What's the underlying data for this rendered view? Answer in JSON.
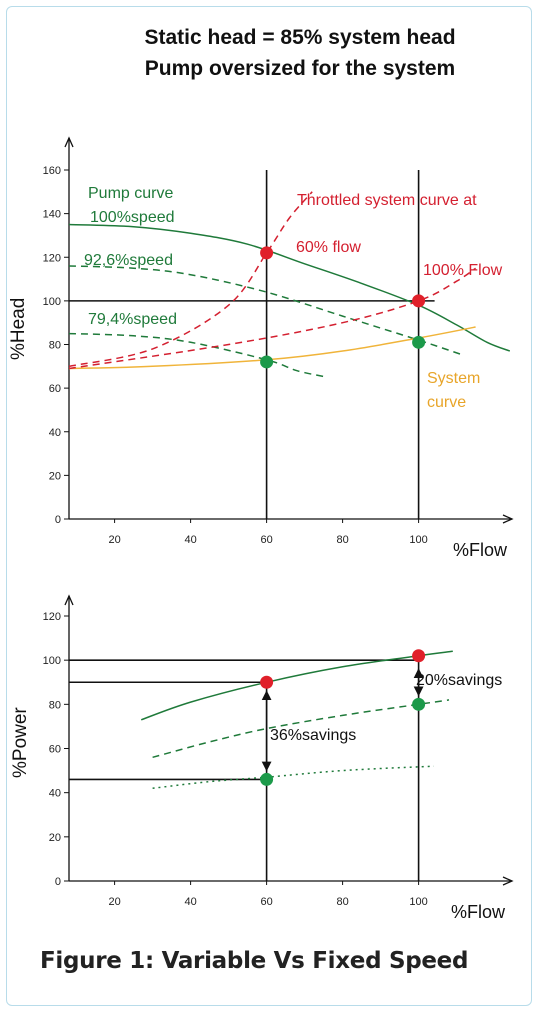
{
  "header": {
    "title_line1": "Static head  =  85% system head",
    "title_line2": "Pump oversized for the system"
  },
  "figure_caption": "Figure 1: Variable Vs Fixed Speed",
  "colors": {
    "pump_curve": "#1f7a3a",
    "system_curve": "#f0b43a",
    "throttled": "#d42030",
    "red_point": "#e0202a",
    "green_point": "#1c9a4a",
    "axis": "#111111"
  },
  "chart_data": [
    {
      "type": "line",
      "xlabel": "%Flow",
      "ylabel": "%Head",
      "xlim": [
        8,
        128
      ],
      "ylim": [
        0,
        160
      ],
      "x_ticks": [
        20,
        40,
        60,
        80,
        100
      ],
      "y_ticks": [
        0,
        20,
        40,
        60,
        80,
        100,
        120,
        140,
        160
      ],
      "annotations": {
        "pump_curve_l1": "Pump curve",
        "pump_curve_l2": "100%speed",
        "speed_926": "92,6%speed",
        "speed_794": "79,4%speed",
        "throttled_l1": "Throttled system curve at",
        "throttled_l2": "60% flow",
        "flow_100": "100% Flow",
        "system_l1": "System",
        "system_l2": "curve"
      },
      "series": [
        {
          "key": "pump100",
          "style": "solid",
          "color": "pump_curve",
          "x": [
            8,
            25,
            40,
            55,
            70,
            85,
            100,
            110,
            118,
            124
          ],
          "y": [
            135,
            134,
            131,
            126,
            117,
            108,
            98,
            89,
            81,
            77
          ]
        },
        {
          "key": "pump926",
          "style": "dashed",
          "color": "pump_curve",
          "x": [
            8,
            25,
            40,
            60,
            80,
            100,
            112
          ],
          "y": [
            116,
            115,
            112,
            104,
            93,
            82,
            75
          ]
        },
        {
          "key": "pump794",
          "style": "dashed",
          "color": "pump_curve",
          "x": [
            8,
            25,
            40,
            60,
            68,
            76
          ],
          "y": [
            85,
            84,
            81,
            73,
            68,
            65
          ]
        },
        {
          "key": "system",
          "style": "solid",
          "color": "system_curve",
          "x": [
            8,
            30,
            60,
            80,
            100,
            115
          ],
          "y": [
            69,
            70,
            73,
            77,
            83,
            88
          ]
        },
        {
          "key": "throttled60",
          "style": "dashed",
          "color": "throttled",
          "x": [
            8,
            30,
            50,
            60,
            66,
            72
          ],
          "y": [
            70,
            78,
            98,
            122,
            138,
            150
          ]
        },
        {
          "key": "throttled100",
          "style": "dashed",
          "color": "throttled",
          "x": [
            8,
            50,
            80,
            100,
            110,
            115
          ],
          "y": [
            69,
            80,
            90,
            100,
            109,
            115
          ]
        }
      ],
      "points": [
        {
          "x": 60,
          "y": 122,
          "color": "red_point"
        },
        {
          "x": 100,
          "y": 100,
          "color": "red_point"
        },
        {
          "x": 60,
          "y": 72,
          "color": "green_point"
        },
        {
          "x": 100,
          "y": 81,
          "color": "green_point"
        }
      ],
      "reference_lines": [
        {
          "orientation": "vertical",
          "x": 60
        },
        {
          "orientation": "vertical",
          "x": 100
        },
        {
          "orientation": "horizontal",
          "y": 100
        }
      ]
    },
    {
      "type": "line",
      "xlabel": "%Flow",
      "ylabel": "%Power",
      "xlim": [
        8,
        128
      ],
      "ylim": [
        0,
        120
      ],
      "x_ticks": [
        20,
        40,
        60,
        80,
        100
      ],
      "y_ticks": [
        0,
        20,
        40,
        60,
        80,
        100,
        120
      ],
      "annotations": {
        "savings_20": "20%savings",
        "savings_36": "36%savings"
      },
      "series": [
        {
          "key": "fixed",
          "style": "solid",
          "color": "pump_curve",
          "x": [
            27,
            40,
            60,
            80,
            100,
            109
          ],
          "y": [
            73,
            81,
            90,
            97,
            102,
            104
          ]
        },
        {
          "key": "speed926",
          "style": "dashed",
          "color": "pump_curve",
          "x": [
            30,
            45,
            60,
            80,
            100,
            108
          ],
          "y": [
            56,
            63,
            69,
            75,
            80,
            82
          ]
        },
        {
          "key": "speed794",
          "style": "dotted",
          "color": "pump_curve",
          "x": [
            30,
            45,
            60,
            80,
            104
          ],
          "y": [
            42,
            45,
            47,
            50,
            52
          ]
        }
      ],
      "points": [
        {
          "x": 60,
          "y": 90,
          "color": "red_point"
        },
        {
          "x": 100,
          "y": 102,
          "color": "red_point"
        },
        {
          "x": 60,
          "y": 46,
          "color": "green_point"
        },
        {
          "x": 100,
          "y": 80,
          "color": "green_point"
        }
      ],
      "reference_lines": [
        {
          "orientation": "vertical",
          "x": 60,
          "y_to": 90
        },
        {
          "orientation": "vertical",
          "x": 100,
          "y_to": 102
        },
        {
          "orientation": "horizontal",
          "y": 100,
          "x_to": 100
        },
        {
          "orientation": "horizontal",
          "y": 90,
          "x_to": 60
        },
        {
          "orientation": "horizontal",
          "y": 46,
          "x_to": 60
        }
      ],
      "arrows": [
        {
          "x": 60,
          "from": 90,
          "to": 46
        },
        {
          "x": 100,
          "from": 100,
          "to": 80
        }
      ]
    }
  ]
}
